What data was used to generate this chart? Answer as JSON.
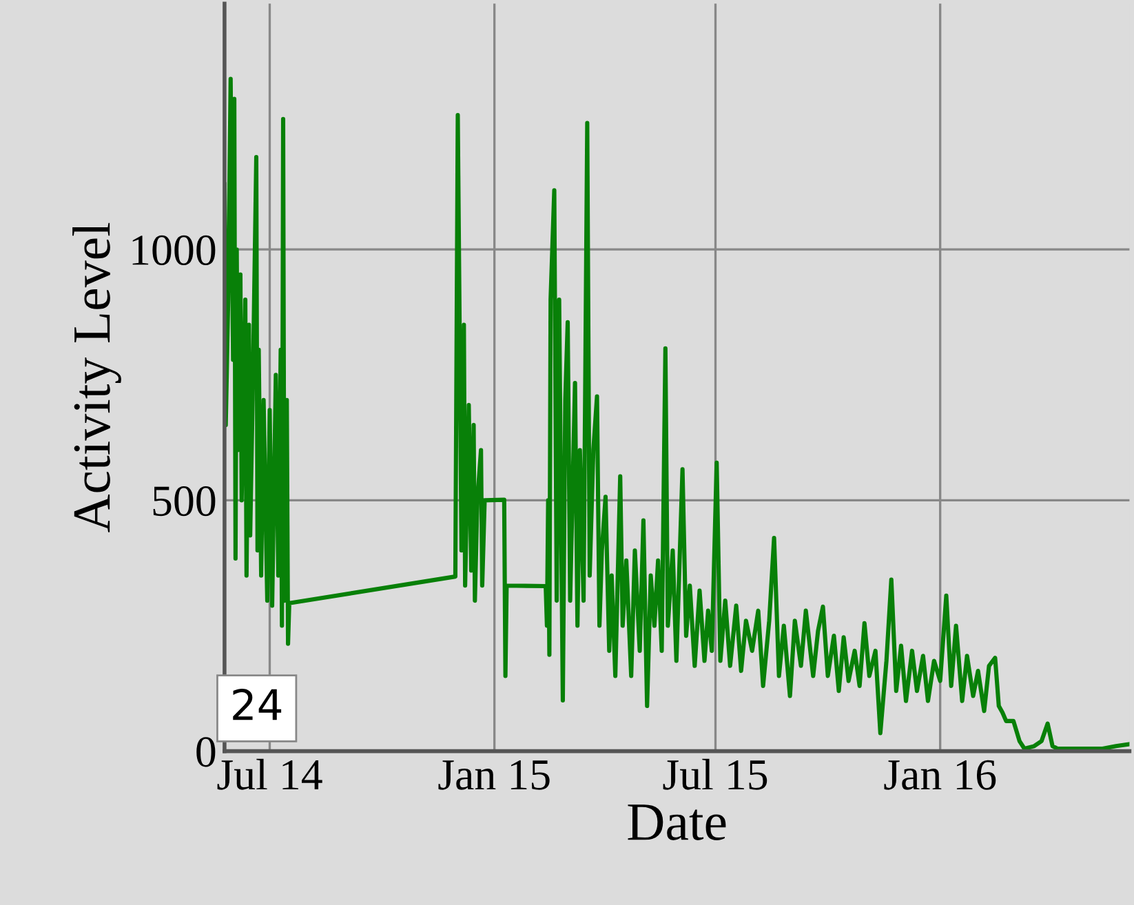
{
  "chart_data": {
    "type": "line",
    "xlabel": "Date",
    "ylabel": "Activity Level",
    "annotations": [
      "24"
    ],
    "xlim": [
      "2014-05-25",
      "2016-06-04"
    ],
    "xticks": [
      {
        "value": "2014-07-01",
        "label": "Jul 14"
      },
      {
        "value": "2015-01-01",
        "label": "Jan 15"
      },
      {
        "value": "2015-07-01",
        "label": "Jul 15"
      },
      {
        "value": "2016-01-01",
        "label": "Jan 16"
      }
    ],
    "ylim": [
      0,
      1490
    ],
    "yticks": [
      0,
      500,
      1000
    ],
    "grid": true,
    "legend": false,
    "marker": "none",
    "line_style": "solid",
    "series": [
      {
        "color": "#088008",
        "x": [
          "2014-05-25",
          "2014-05-26",
          "2014-05-28",
          "2014-05-30",
          "2014-06-01",
          "2014-06-02",
          "2014-06-03",
          "2014-06-04",
          "2014-06-05",
          "2014-06-07",
          "2014-06-08",
          "2014-06-11",
          "2014-06-12",
          "2014-06-14",
          "2014-06-15",
          "2014-06-17",
          "2014-06-20",
          "2014-06-21",
          "2014-06-22",
          "2014-06-24",
          "2014-06-26",
          "2014-06-29",
          "2014-07-01",
          "2014-07-03",
          "2014-07-06",
          "2014-07-08",
          "2014-07-10",
          "2014-07-11",
          "2014-07-12",
          "2014-07-13",
          "2014-07-15",
          "2014-07-16",
          "2014-07-17",
          "2014-11-30",
          "2014-12-02",
          "2014-12-04",
          "2014-12-05",
          "2014-12-07",
          "2014-12-08",
          "2014-12-11",
          "2014-12-13",
          "2014-12-15",
          "2014-12-16",
          "2014-12-18",
          "2014-12-21",
          "2014-12-22",
          "2014-12-24",
          "2015-01-09",
          "2015-01-10",
          "2015-01-11",
          "2015-02-12",
          "2015-02-13",
          "2015-02-14",
          "2015-02-15",
          "2015-02-16",
          "2015-02-19",
          "2015-02-21",
          "2015-02-23",
          "2015-02-26",
          "2015-02-28",
          "2015-03-02",
          "2015-03-04",
          "2015-03-08",
          "2015-03-10",
          "2015-03-12",
          "2015-03-15",
          "2015-03-18",
          "2015-03-20",
          "2015-03-23",
          "2015-03-26",
          "2015-03-28",
          "2015-03-30",
          "2015-04-02",
          "2015-04-05",
          "2015-04-07",
          "2015-04-10",
          "2015-04-14",
          "2015-04-16",
          "2015-04-19",
          "2015-04-23",
          "2015-04-26",
          "2015-04-30",
          "2015-05-03",
          "2015-05-06",
          "2015-05-09",
          "2015-05-12",
          "2015-05-15",
          "2015-05-18",
          "2015-05-21",
          "2015-05-23",
          "2015-05-27",
          "2015-05-30",
          "2015-06-04",
          "2015-06-07",
          "2015-06-10",
          "2015-06-14",
          "2015-06-18",
          "2015-06-22",
          "2015-06-25",
          "2015-06-28",
          "2015-07-02",
          "2015-07-05",
          "2015-07-09",
          "2015-07-13",
          "2015-07-18",
          "2015-07-22",
          "2015-07-26",
          "2015-07-31",
          "2015-08-05",
          "2015-08-09",
          "2015-08-14",
          "2015-08-18",
          "2015-08-22",
          "2015-08-26",
          "2015-08-31",
          "2015-09-04",
          "2015-09-09",
          "2015-09-13",
          "2015-09-19",
          "2015-09-23",
          "2015-09-27",
          "2015-10-01",
          "2015-10-06",
          "2015-10-10",
          "2015-10-14",
          "2015-10-18",
          "2015-10-23",
          "2015-10-27",
          "2015-10-31",
          "2015-11-04",
          "2015-11-09",
          "2015-11-13",
          "2015-11-18",
          "2015-11-22",
          "2015-11-26",
          "2015-11-30",
          "2015-12-04",
          "2015-12-09",
          "2015-12-13",
          "2015-12-18",
          "2015-12-22",
          "2015-12-27",
          "2016-01-01",
          "2016-01-06",
          "2016-01-10",
          "2016-01-14",
          "2016-01-19",
          "2016-01-23",
          "2016-01-28",
          "2016-02-01",
          "2016-02-06",
          "2016-02-10",
          "2016-02-15",
          "2016-02-18",
          "2016-02-21",
          "2016-02-24",
          "2016-03-01",
          "2016-03-06",
          "2016-03-10",
          "2016-03-18",
          "2016-03-24",
          "2016-03-29",
          "2016-04-02",
          "2016-04-06",
          "2016-04-21",
          "2016-05-13",
          "2016-05-24",
          "2016-06-04"
        ],
        "values": [
          1130,
          650,
          900,
          1340,
          780,
          1300,
          384,
          1000,
          600,
          950,
          500,
          900,
          350,
          850,
          430,
          700,
          1184,
          400,
          800,
          350,
          700,
          300,
          680,
          290,
          750,
          350,
          800,
          250,
          1260,
          300,
          700,
          214,
          295,
          348,
          1268,
          700,
          400,
          850,
          330,
          690,
          360,
          650,
          300,
          500,
          600,
          330,
          500,
          501,
          150,
          330,
          329,
          250,
          500,
          192,
          900,
          1118,
          300,
          900,
          101,
          700,
          855,
          300,
          734,
          250,
          600,
          300,
          1252,
          350,
          600,
          707,
          250,
          400,
          507,
          200,
          350,
          150,
          548,
          250,
          380,
          150,
          400,
          200,
          460,
          90,
          350,
          250,
          380,
          200,
          803,
          250,
          400,
          180,
          562,
          230,
          330,
          170,
          320,
          180,
          280,
          200,
          575,
          180,
          300,
          170,
          290,
          160,
          260,
          200,
          280,
          130,
          260,
          425,
          150,
          250,
          110,
          260,
          170,
          280,
          150,
          240,
          288,
          150,
          230,
          120,
          227,
          140,
          200,
          130,
          255,
          150,
          200,
          36,
          180,
          342,
          120,
          210,
          100,
          200,
          120,
          190,
          100,
          180,
          140,
          310,
          130,
          250,
          100,
          190,
          110,
          160,
          80,
          170,
          186,
          90,
          77,
          60,
          60,
          20,
          5,
          10,
          20,
          55,
          10,
          5,
          5,
          5,
          10,
          14
        ]
      }
    ]
  }
}
